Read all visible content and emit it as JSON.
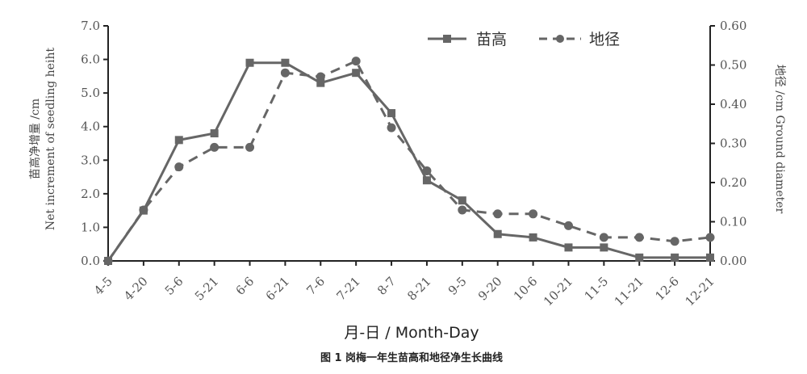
{
  "chart_data": {
    "type": "line",
    "categories": [
      "4-5",
      "4-20",
      "5-6",
      "5-21",
      "6-6",
      "6-21",
      "7-6",
      "7-21",
      "8-7",
      "8-21",
      "9-5",
      "9-20",
      "10-6",
      "10-21",
      "11-5",
      "11-21",
      "12-6",
      "12-21"
    ],
    "series": [
      {
        "name": "苗高",
        "axis": "left",
        "style": "solid",
        "marker": "square",
        "values": [
          0.0,
          1.5,
          3.6,
          3.8,
          5.9,
          5.9,
          5.3,
          5.6,
          4.4,
          2.4,
          1.8,
          0.8,
          0.7,
          0.4,
          0.4,
          0.1,
          0.1,
          0.1
        ]
      },
      {
        "name": "地径",
        "axis": "right",
        "style": "dashed",
        "marker": "circle",
        "values": [
          0.0,
          0.13,
          0.24,
          0.29,
          0.29,
          0.48,
          0.47,
          0.51,
          0.34,
          0.23,
          0.13,
          0.12,
          0.12,
          0.09,
          0.06,
          0.06,
          0.05,
          0.06
        ]
      }
    ],
    "ylim": [
      0,
      7
    ],
    "y2lim": [
      0,
      0.6
    ],
    "yticks": [
      "0.0",
      "1.0",
      "2.0",
      "3.0",
      "4.0",
      "5.0",
      "6.0",
      "7.0"
    ],
    "y2ticks": [
      "0.00",
      "0.10",
      "0.20",
      "0.30",
      "0.40",
      "0.50",
      "0.60"
    ],
    "ylabel_line1": "苗高净增量 /cm",
    "ylabel_line2": "Net increment of seedling heiht",
    "y2label": "地径 /cm Ground diameter",
    "xlabel": "月-日 / Month-Day",
    "caption": "图 1   岗梅一年生苗高和地径净生长曲线",
    "legend_position": "top-right",
    "grid": false,
    "colors": {
      "line": "#666666",
      "axis": "#222222",
      "text": "#555555"
    }
  }
}
